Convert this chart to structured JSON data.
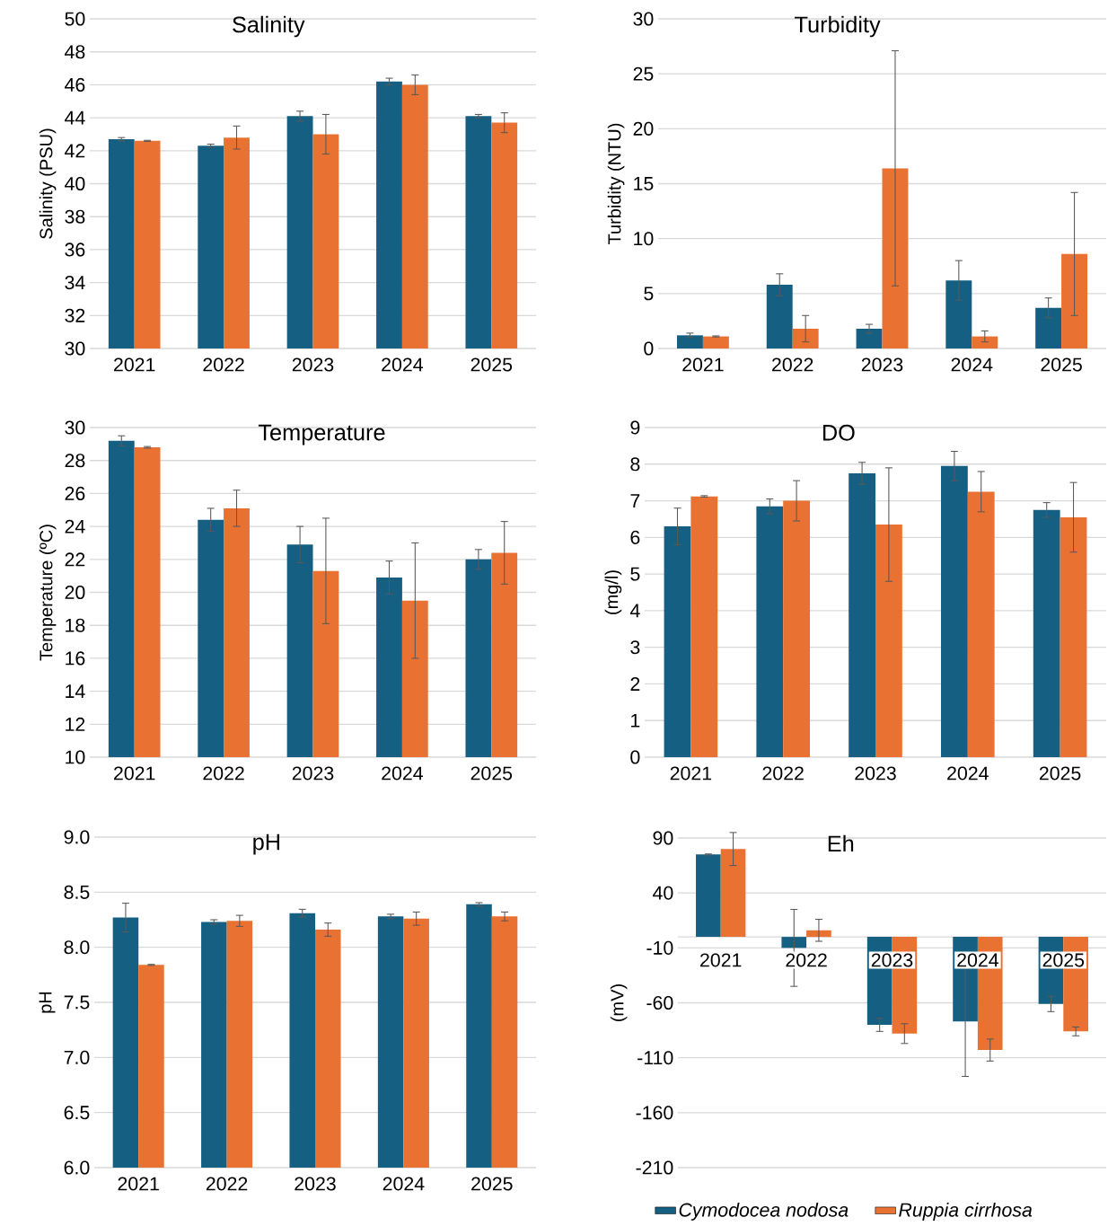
{
  "chart_data": [
    {
      "type": "bar",
      "title": "Salinity",
      "ylabel": "Salinity (PSU)",
      "categories": [
        "2021",
        "2022",
        "2023",
        "2024",
        "2025"
      ],
      "grid": "y",
      "ylim": [
        30,
        50
      ],
      "yticks": [
        30,
        32,
        34,
        36,
        38,
        40,
        42,
        44,
        46,
        48,
        50
      ],
      "series": [
        {
          "color": "#156082",
          "values": [
            42.7,
            42.3,
            44.1,
            46.2,
            44.1
          ],
          "errors": [
            0.1,
            0.1,
            0.3,
            0.2,
            0.1
          ]
        },
        {
          "color": "#e97132",
          "values": [
            42.6,
            42.8,
            43.0,
            46.0,
            43.7
          ],
          "errors": [
            0.03,
            0.7,
            1.2,
            0.6,
            0.6
          ]
        }
      ]
    },
    {
      "type": "bar",
      "title": "Turbidity",
      "ylabel": "Turbidity (NTU)",
      "categories": [
        "2021",
        "2022",
        "2023",
        "2024",
        "2025"
      ],
      "grid": "y",
      "ylim": [
        0,
        30
      ],
      "yticks": [
        0,
        5,
        10,
        15,
        20,
        25,
        30
      ],
      "series": [
        {
          "color": "#156082",
          "values": [
            1.2,
            5.8,
            1.8,
            6.2,
            3.7
          ],
          "errors": [
            0.2,
            1.0,
            0.4,
            1.8,
            0.9
          ]
        },
        {
          "color": "#e97132",
          "values": [
            1.1,
            1.8,
            16.4,
            1.1,
            8.6
          ],
          "errors": [
            0.05,
            1.2,
            10.7,
            0.5,
            5.6
          ]
        }
      ]
    },
    {
      "type": "bar",
      "title": "Temperature",
      "ylabel": "Temperature (ºC)",
      "categories": [
        "2021",
        "2022",
        "2023",
        "2024",
        "2025"
      ],
      "grid": "y",
      "ylim": [
        10,
        30
      ],
      "yticks": [
        10,
        12,
        14,
        16,
        18,
        20,
        22,
        24,
        26,
        28,
        30
      ],
      "series": [
        {
          "color": "#156082",
          "values": [
            29.2,
            24.4,
            22.9,
            20.9,
            22.0
          ],
          "errors": [
            0.3,
            0.7,
            1.1,
            1.0,
            0.6
          ]
        },
        {
          "color": "#e97132",
          "values": [
            28.8,
            25.1,
            21.3,
            19.5,
            22.4
          ],
          "errors": [
            0.05,
            1.1,
            3.2,
            3.5,
            1.9
          ]
        }
      ]
    },
    {
      "type": "bar",
      "title": "DO",
      "ylabel": "(mg/l)",
      "categories": [
        "2021",
        "2022",
        "2023",
        "2024",
        "2025"
      ],
      "grid": "y",
      "ylim": [
        0,
        9
      ],
      "yticks": [
        0,
        1,
        2,
        3,
        4,
        5,
        6,
        7,
        8,
        9
      ],
      "series": [
        {
          "color": "#156082",
          "values": [
            6.3,
            6.85,
            7.75,
            7.95,
            6.75
          ],
          "errors": [
            0.5,
            0.2,
            0.3,
            0.4,
            0.2
          ]
        },
        {
          "color": "#e97132",
          "values": [
            7.12,
            7.0,
            6.35,
            7.25,
            6.55
          ],
          "errors": [
            0.02,
            0.55,
            1.55,
            0.55,
            0.95
          ]
        }
      ]
    },
    {
      "type": "bar",
      "title": "pH",
      "ylabel": "pH",
      "categories": [
        "2021",
        "2022",
        "2023",
        "2024",
        "2025"
      ],
      "grid": "y",
      "ylim": [
        6,
        9
      ],
      "yticks": [
        {
          "value": 6,
          "label": "6.0"
        },
        {
          "value": 6.5,
          "label": "6.5"
        },
        {
          "value": 7,
          "label": "7.0"
        },
        {
          "value": 7.5,
          "label": "7.5"
        },
        {
          "value": 8,
          "label": "8.0"
        },
        {
          "value": 8.5,
          "label": "8.5"
        },
        {
          "value": 9,
          "label": "9.0"
        }
      ],
      "series": [
        {
          "color": "#156082",
          "values": [
            8.27,
            8.23,
            8.31,
            8.28,
            8.39
          ],
          "errors": [
            0.13,
            0.02,
            0.035,
            0.02,
            0.015
          ]
        },
        {
          "color": "#e97132",
          "values": [
            7.84,
            8.24,
            8.16,
            8.26,
            8.28
          ],
          "errors": [
            0.005,
            0.05,
            0.06,
            0.06,
            0.04
          ]
        }
      ]
    },
    {
      "type": "bar",
      "title": "Eh",
      "ylabel": "(mV)",
      "categories": [
        "2021",
        "2022",
        "2023",
        "2024",
        "2025"
      ],
      "grid": "y",
      "ylim": [
        -210,
        90
      ],
      "yticks": [
        -210,
        -160,
        -110,
        -60,
        -10,
        40,
        90
      ],
      "legend": "bottom",
      "series": [
        {
          "name": "Cymodocea nodosa",
          "color": "#156082",
          "values": [
            75,
            -10,
            -80,
            -77,
            -61
          ],
          "errors": [
            0.5,
            35,
            6,
            50,
            7
          ]
        },
        {
          "name": "Ruppia cirrhosa",
          "color": "#e97132",
          "values": [
            80,
            6,
            -88,
            -103,
            -86
          ],
          "errors": [
            15,
            10,
            9,
            10,
            4
          ]
        }
      ]
    }
  ]
}
